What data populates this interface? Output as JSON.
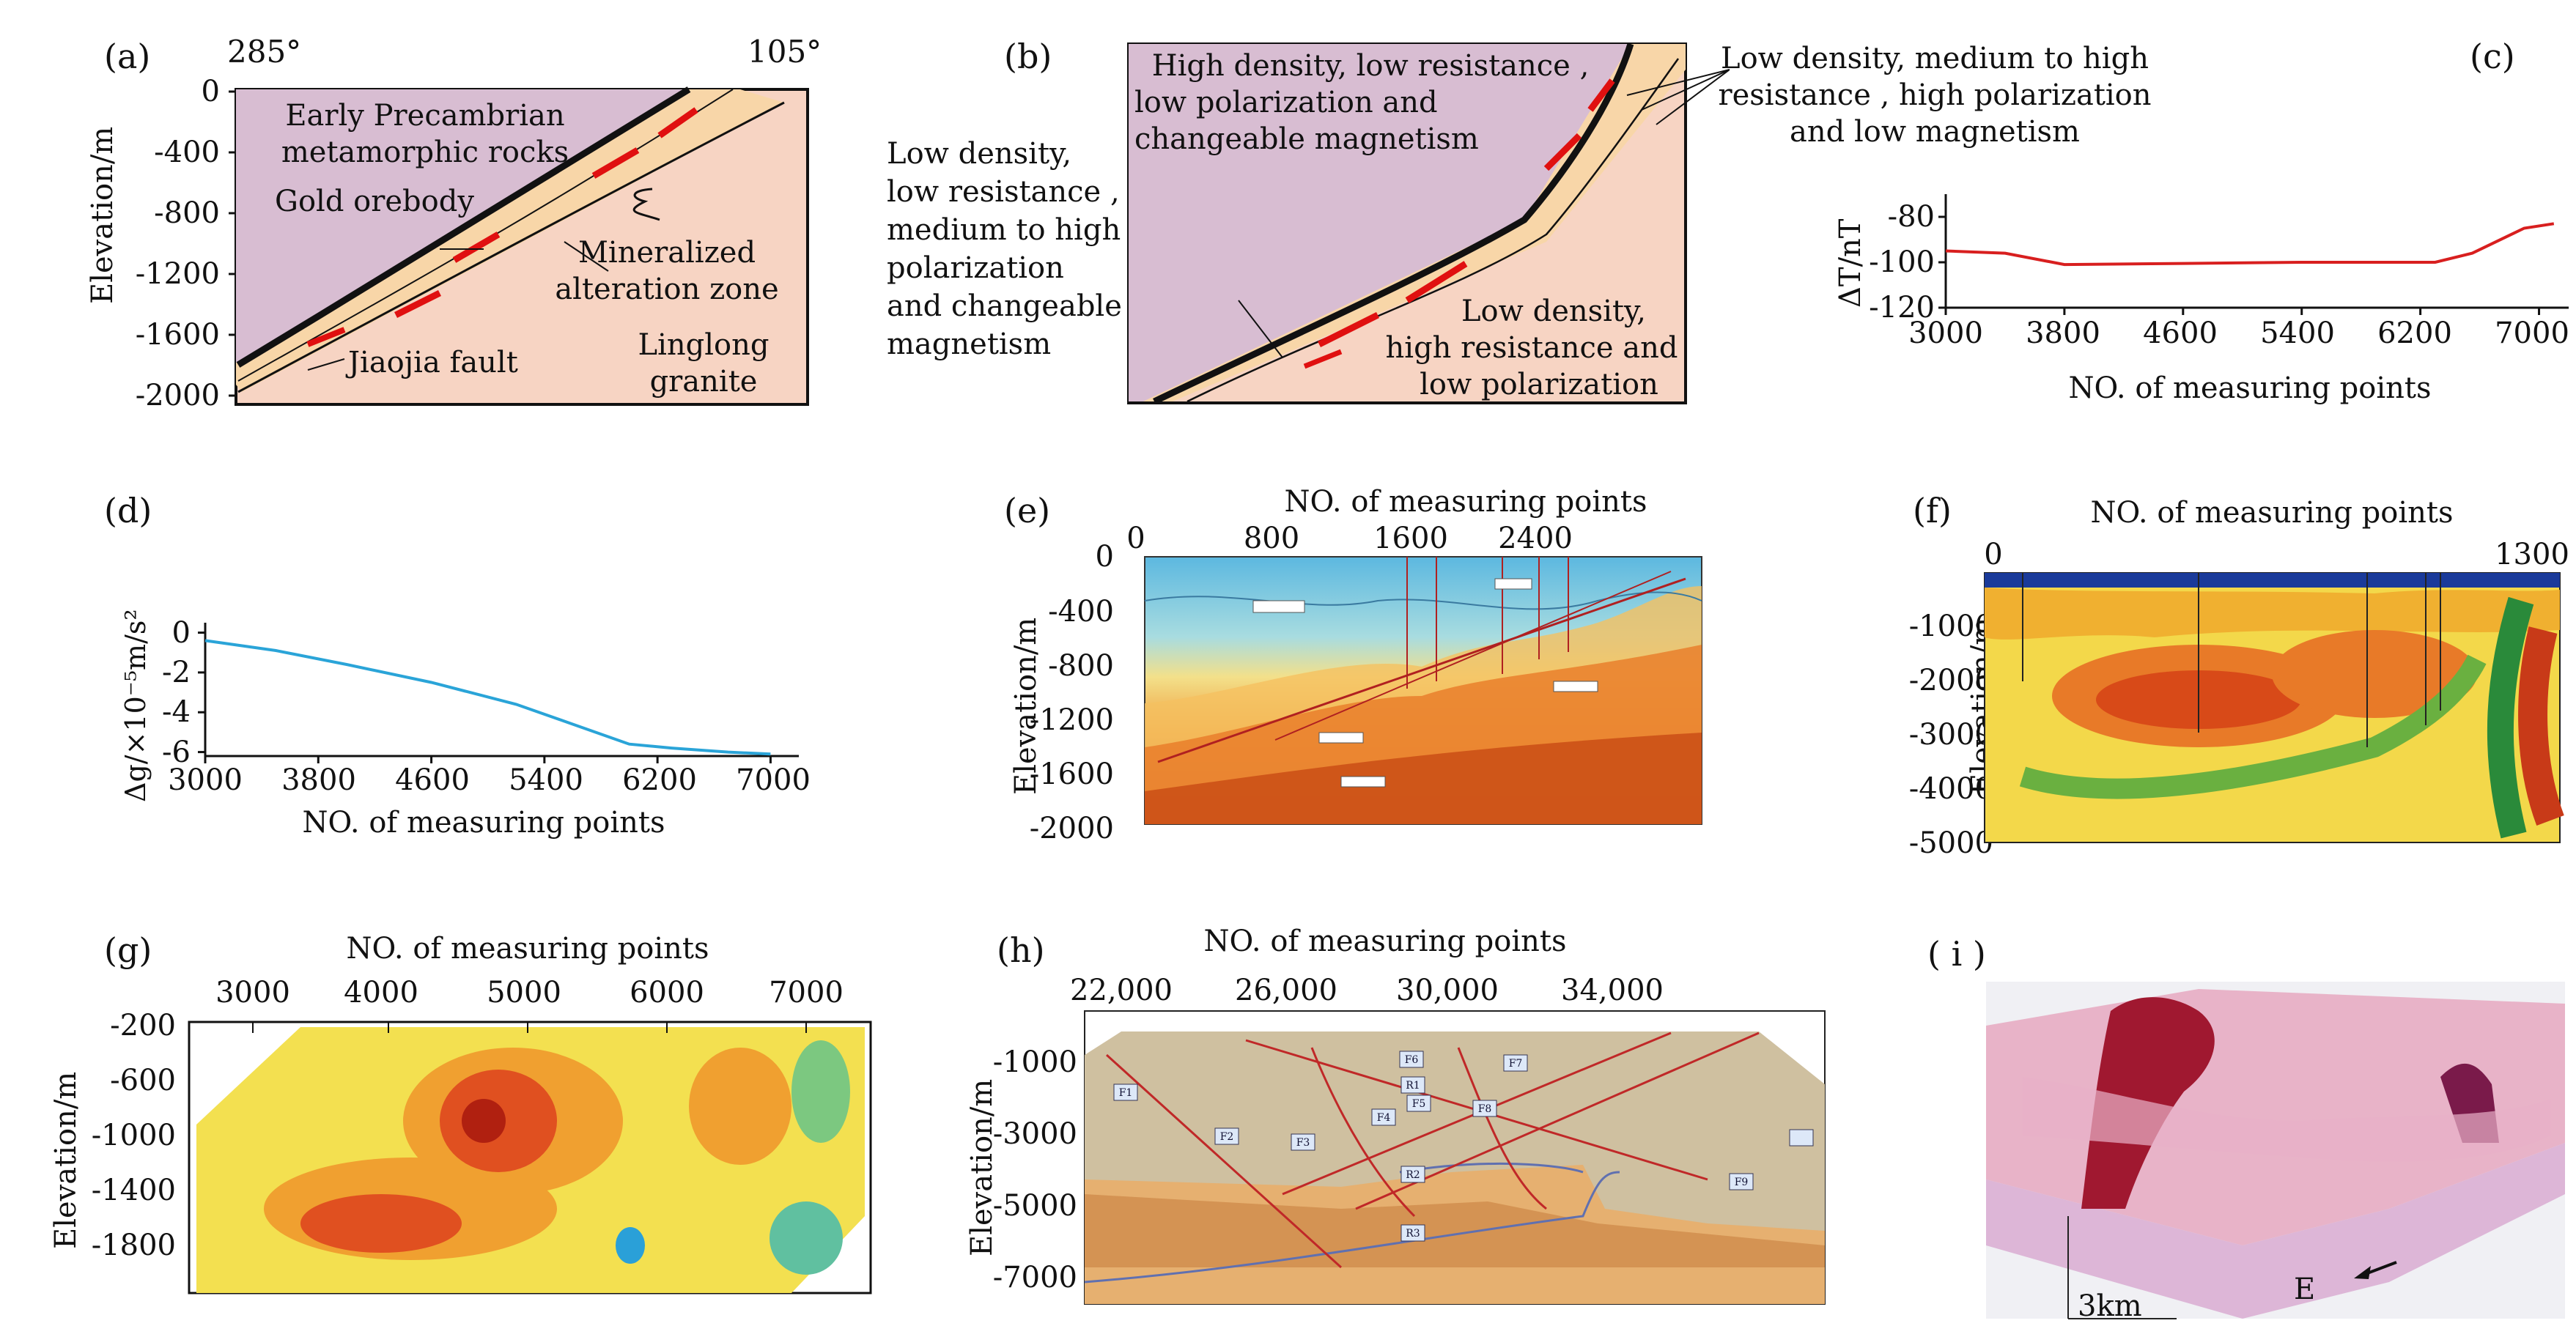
{
  "panels": {
    "a": {
      "label": "(a)",
      "angle_left": "285°",
      "angle_right": "105°",
      "ylabel": "Elevation/m",
      "yticks": [
        "0",
        "-400",
        "-800",
        "-1200",
        "-1600",
        "-2000"
      ],
      "rock_text_1": "Early Precambrian",
      "rock_text_2": "metamorphic rocks",
      "orebody": "Gold orebody",
      "zone_1": "Mineralized",
      "zone_2": "alteration zone",
      "fault": "Jiaojia fault",
      "granite_1": "Linglong",
      "granite_2": "granite"
    },
    "b": {
      "label": "(b)",
      "top_1": "High density, low resistance ,",
      "top_2": "low polarization  and",
      "top_3": "changeable magnetism",
      "right_1": "Low density, medium to high",
      "right_2": "resistance ,  high polarization",
      "right_3": "and low magnetism",
      "left_1": "Low density,",
      "left_2": "low resistance ,",
      "left_3": "medium to high",
      "left_4": "polarization",
      "left_5": "and changeable",
      "left_6": "magnetism",
      "br_1": "Low density,",
      "br_2": "high resistance and",
      "br_3": "low polarization"
    },
    "c": {
      "label": "(c)",
      "ylabel": "ΔT/nT",
      "xlabel": "NO. of measuring points",
      "yticks": [
        "-80",
        "-100",
        "-120"
      ],
      "xticks": [
        "3000",
        "3800",
        "4600",
        "5400",
        "6200",
        "7000"
      ]
    },
    "d": {
      "label": "(d)",
      "ylabel": "Δg/×10⁻⁵m/s²",
      "xlabel": "NO. of measuring points",
      "yticks": [
        "0",
        "-2",
        "-4",
        "-6"
      ],
      "xticks": [
        "3000",
        "3800",
        "4600",
        "5400",
        "6200",
        "7000"
      ]
    },
    "e": {
      "label": "(e)",
      "title": "NO. of measuring points",
      "ylabel": "Elevation/m",
      "xticks": [
        "0",
        "800",
        "1600",
        "2400"
      ],
      "yticks": [
        "0",
        "-400",
        "-800",
        "-1200",
        "-1600",
        "-2000"
      ]
    },
    "f": {
      "label": "(f)",
      "title": "NO. of measuring points",
      "ylabel": "Elevation/m",
      "xticks": [
        "0",
        "1300"
      ],
      "yticks": [
        "-1000",
        "-2000",
        "-3000",
        "-4000",
        "-5000"
      ]
    },
    "g": {
      "label": "(g)",
      "title": "NO. of measuring points",
      "ylabel": "Elevation/m",
      "xticks": [
        "3000",
        "4000",
        "5000",
        "6000",
        "7000"
      ],
      "yticks": [
        "-200",
        "-600",
        "-1000",
        "-1400",
        "-1800"
      ]
    },
    "h": {
      "label": "(h)",
      "title": "NO. of measuring points",
      "ylabel": "Elevation/m",
      "xticks": [
        "22,000",
        "26,000",
        "30,000",
        "34,000"
      ],
      "yticks": [
        "-1000",
        "-3000",
        "-5000",
        "-7000"
      ],
      "faults": [
        "F1",
        "F2",
        "F3",
        "F4",
        "F5",
        "F6",
        "F7",
        "F8",
        "F9",
        "R1",
        "R2",
        "R3"
      ]
    },
    "i": {
      "label": "( i )",
      "direction": "E",
      "scale": "3km"
    }
  },
  "chart_data": [
    {
      "type": "line",
      "panel": "c",
      "title": "",
      "xlabel": "NO. of measuring points",
      "ylabel": "ΔT/nT",
      "x": [
        3000,
        3400,
        3800,
        4600,
        5400,
        6300,
        6550,
        6900,
        7100
      ],
      "y": [
        -95,
        -96,
        -101,
        -100.5,
        -100,
        -100,
        -96,
        -85,
        -83
      ],
      "xlim": [
        3000,
        7200
      ],
      "ylim": [
        -120,
        -70
      ]
    },
    {
      "type": "line",
      "panel": "d",
      "title": "",
      "xlabel": "NO. of measuring points",
      "ylabel": "Δg/×10⁻⁵m/s²",
      "x": [
        3000,
        3500,
        4000,
        4600,
        5200,
        5600,
        6000,
        6300,
        6700,
        7000
      ],
      "y": [
        -0.4,
        -0.9,
        -1.6,
        -2.5,
        -3.6,
        -4.6,
        -5.6,
        -5.8,
        -6.0,
        -6.1
      ],
      "xlim": [
        3000,
        7200
      ],
      "ylim": [
        -6.2,
        0.5
      ]
    }
  ]
}
